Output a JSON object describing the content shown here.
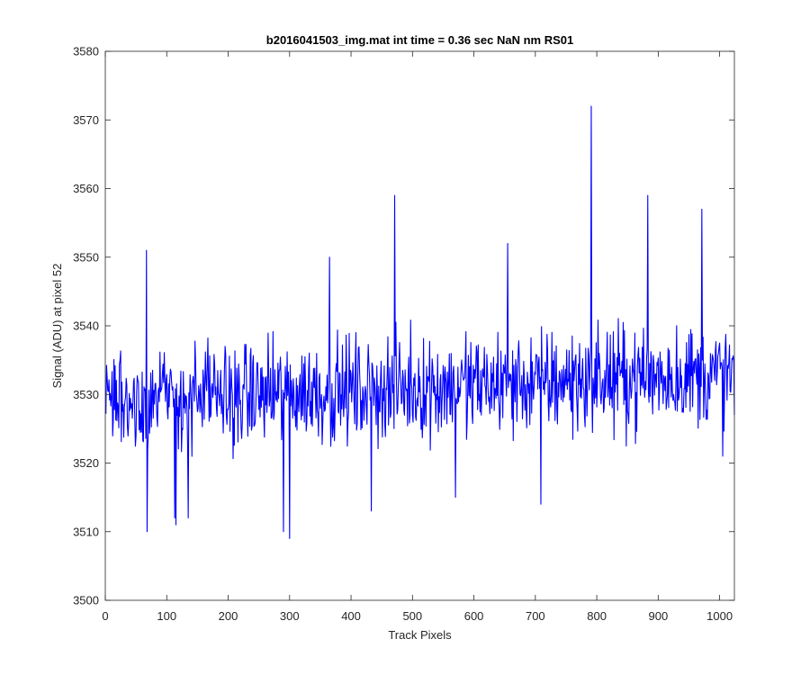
{
  "chart_data": {
    "type": "line",
    "title": "b2016041503_img.mat int time = 0.36 sec  NaN nm RS01",
    "xlabel": "Track Pixels",
    "ylabel": "Signal (ADU) at pixel 52",
    "xlim": [
      0,
      1024
    ],
    "ylim": [
      3500,
      3580
    ],
    "xticks": [
      0,
      100,
      200,
      300,
      400,
      500,
      600,
      700,
      800,
      900,
      1000
    ],
    "xtick_labels": [
      "0",
      "100",
      "200",
      "300",
      "400",
      "500",
      "600",
      "700",
      "800",
      "900",
      "1000"
    ],
    "yticks": [
      3500,
      3510,
      3520,
      3530,
      3540,
      3550,
      3560,
      3570,
      3580
    ],
    "ytick_labels": [
      "3500",
      "3510",
      "3520",
      "3530",
      "3540",
      "3550",
      "3560",
      "3570",
      "3580"
    ],
    "grid": false,
    "series": [
      {
        "color": "#0000ff",
        "x_start": 1,
        "x_step": 1,
        "count": 1024,
        "baseline_start": 3529,
        "baseline_end": 3533,
        "noise_amplitude": 11,
        "peaks": [
          {
            "x": 67,
            "y": 3551
          },
          {
            "x": 68,
            "y": 3510
          },
          {
            "x": 113,
            "y": 3512
          },
          {
            "x": 115,
            "y": 3511
          },
          {
            "x": 135,
            "y": 3512
          },
          {
            "x": 290,
            "y": 3510
          },
          {
            "x": 300,
            "y": 3509
          },
          {
            "x": 365,
            "y": 3550
          },
          {
            "x": 433,
            "y": 3513
          },
          {
            "x": 471,
            "y": 3559
          },
          {
            "x": 570,
            "y": 3515
          },
          {
            "x": 655,
            "y": 3552
          },
          {
            "x": 709,
            "y": 3514
          },
          {
            "x": 791,
            "y": 3572
          },
          {
            "x": 883,
            "y": 3559
          },
          {
            "x": 971,
            "y": 3557
          },
          {
            "x": 1005,
            "y": 3521
          }
        ]
      }
    ]
  }
}
